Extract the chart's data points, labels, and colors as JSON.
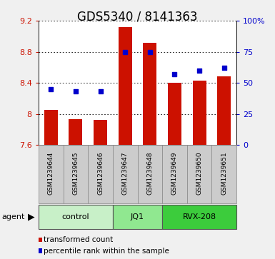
{
  "title": "GDS5340 / 8141363",
  "samples": [
    "GSM1239644",
    "GSM1239645",
    "GSM1239646",
    "GSM1239647",
    "GSM1239648",
    "GSM1239649",
    "GSM1239650",
    "GSM1239651"
  ],
  "bar_values": [
    8.05,
    7.93,
    7.92,
    9.12,
    8.92,
    8.4,
    8.43,
    8.48
  ],
  "percentile_values": [
    45,
    43,
    43,
    75,
    75,
    57,
    60,
    62
  ],
  "ymin": 7.6,
  "ymax": 9.2,
  "y2min": 0,
  "y2max": 100,
  "yticks": [
    7.6,
    8.0,
    8.4,
    8.8,
    9.2
  ],
  "ytick_labels": [
    "7.6",
    "8",
    "8.4",
    "8.8",
    "9.2"
  ],
  "y2ticks": [
    0,
    25,
    50,
    75,
    100
  ],
  "y2tick_labels": [
    "0",
    "25",
    "50",
    "75",
    "100%"
  ],
  "groups": [
    {
      "label": "control",
      "indices": [
        0,
        1,
        2
      ],
      "color": "#c8f0c8"
    },
    {
      "label": "JQ1",
      "indices": [
        3,
        4
      ],
      "color": "#90e890"
    },
    {
      "label": "RVX-208",
      "indices": [
        5,
        6,
        7
      ],
      "color": "#3ccc3c"
    }
  ],
  "bar_color": "#cc1100",
  "dot_color": "#0000cc",
  "bar_width": 0.55,
  "agent_label": "agent",
  "legend_items": [
    {
      "color": "#cc1100",
      "label": "transformed count"
    },
    {
      "color": "#0000cc",
      "label": "percentile rank within the sample"
    }
  ],
  "grid_color": "#000000",
  "plot_bg_color": "#ffffff",
  "outer_bg_color": "#f0f0f0",
  "tick_area_bg": "#cccccc",
  "title_fontsize": 12,
  "tick_fontsize": 8,
  "sample_fontsize": 6.5,
  "group_fontsize": 8,
  "legend_fontsize": 7.5
}
